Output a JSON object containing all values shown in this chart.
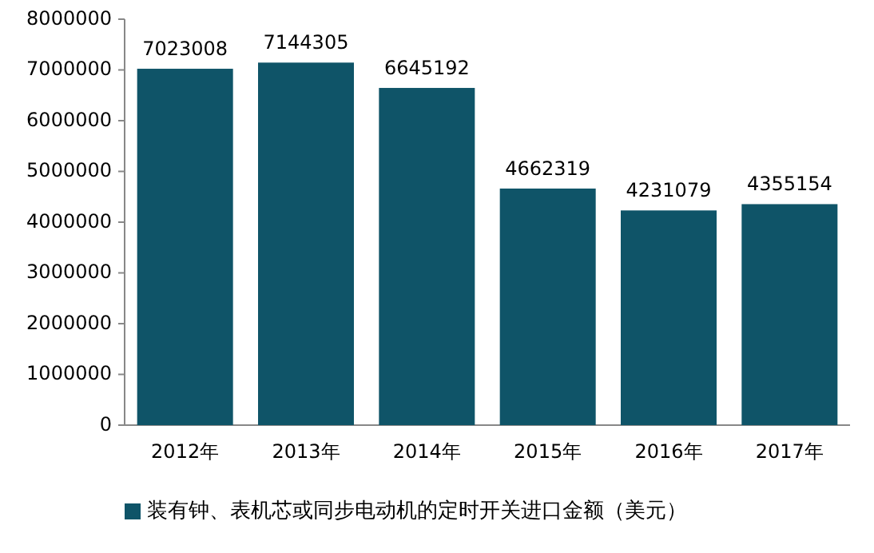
{
  "chart_data": {
    "type": "bar",
    "categories": [
      "2012年",
      "2013年",
      "2014年",
      "2015年",
      "2016年",
      "2017年"
    ],
    "series": [
      {
        "name": "装有钟、表机芯或同步电动机的定时开关进口金额（美元）",
        "color": "#0f5468",
        "values": [
          7023008,
          7144305,
          6645192,
          4662319,
          4231079,
          4355154
        ]
      }
    ],
    "ylim": [
      0,
      8000000
    ],
    "yticks": [
      0,
      1000000,
      2000000,
      3000000,
      4000000,
      5000000,
      6000000,
      7000000,
      8000000
    ],
    "data_labels": true,
    "legend": "bottom"
  }
}
